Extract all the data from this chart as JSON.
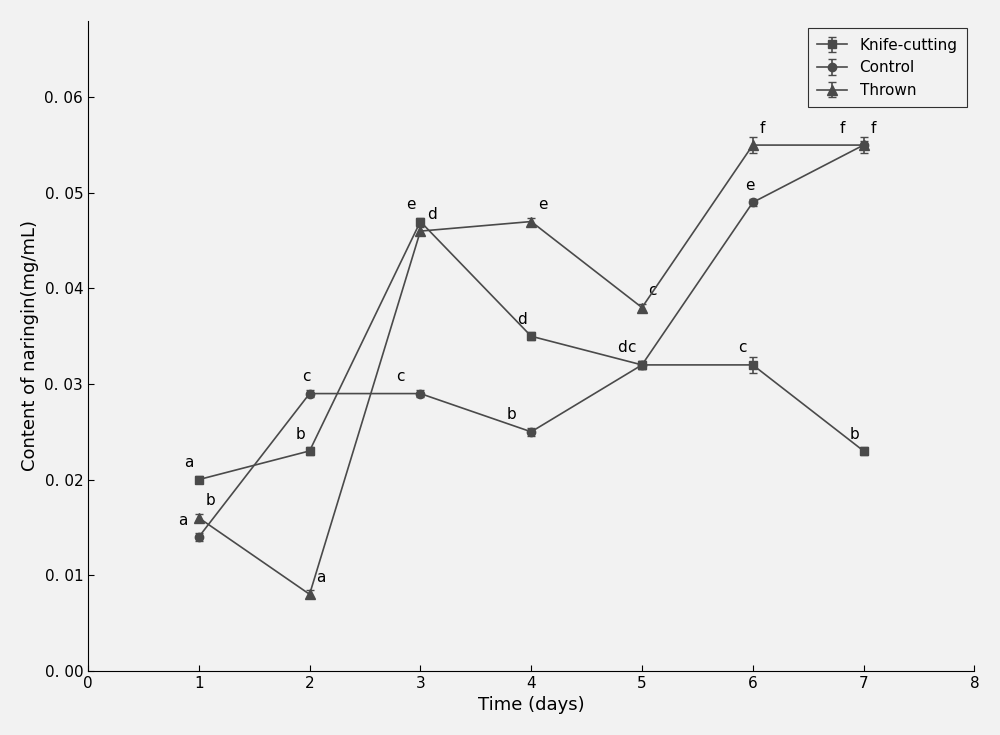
{
  "knife_cutting_x": [
    1,
    2,
    3,
    4,
    5,
    6,
    7
  ],
  "knife_cutting_y": [
    0.02,
    0.023,
    0.047,
    0.035,
    0.032,
    0.032,
    0.023
  ],
  "knife_cutting_yerr": [
    0.0004,
    0.0004,
    0.0004,
    0.0004,
    0.0004,
    0.0008,
    0.0004
  ],
  "knife_cutting_labels": [
    "a",
    "b",
    "e",
    "d",
    "c",
    "c",
    "b"
  ],
  "knife_cutting_lx": [
    -0.13,
    -0.13,
    -0.13,
    -0.13,
    -0.13,
    -0.13,
    -0.13
  ],
  "knife_cutting_ly": [
    0.0013,
    0.0013,
    0.0013,
    0.0013,
    0.0013,
    0.0013,
    0.0013
  ],
  "control_x": [
    1,
    2,
    3,
    4,
    5,
    6,
    7
  ],
  "control_y": [
    0.014,
    0.029,
    0.029,
    0.025,
    0.032,
    0.049,
    0.055
  ],
  "control_yerr": [
    0.0004,
    0.0004,
    0.0004,
    0.0004,
    0.0004,
    0.0004,
    0.0008
  ],
  "control_labels": [
    "a",
    "c",
    "c",
    "b",
    "d",
    "e",
    "f"
  ],
  "control_lx": [
    -0.19,
    -0.07,
    -0.22,
    -0.22,
    -0.22,
    -0.07,
    -0.22
  ],
  "control_ly": [
    0.0013,
    0.0013,
    0.0013,
    0.0013,
    0.0013,
    0.0013,
    0.0013
  ],
  "thrown_x": [
    1,
    2,
    3,
    4,
    5,
    6,
    7
  ],
  "thrown_y": [
    0.016,
    0.008,
    0.046,
    0.047,
    0.038,
    0.055,
    0.055
  ],
  "thrown_yerr": [
    0.0004,
    0.0004,
    0.0004,
    0.0004,
    0.0004,
    0.0008,
    0.0004
  ],
  "thrown_labels": [
    "b",
    "a",
    "d",
    "e",
    "c",
    "f",
    "f"
  ],
  "thrown_lx": [
    0.06,
    0.06,
    0.06,
    0.06,
    0.06,
    0.06,
    0.06
  ],
  "thrown_ly": [
    0.0013,
    0.0013,
    0.0013,
    0.0013,
    0.0013,
    0.0013,
    0.0013
  ],
  "line_color": "#4a4a4a",
  "marker_color": "#4a4a4a",
  "figure_facecolor": "#f2f2f2",
  "axes_facecolor": "#f2f2f2",
  "xlabel": "Time (days)",
  "ylabel": "Content of naringin(mg/mL)",
  "xlim": [
    0,
    8
  ],
  "ylim": [
    0.0,
    0.068
  ],
  "ytick_values": [
    0.0,
    0.01,
    0.02,
    0.03,
    0.04,
    0.05,
    0.06
  ],
  "ytick_labels": [
    "0. 00",
    "0. 01",
    "0. 02",
    "0. 03",
    "0. 04",
    "0. 05",
    "0. 06"
  ],
  "xticks": [
    0,
    1,
    2,
    3,
    4,
    5,
    6,
    7,
    8
  ],
  "legend_labels": [
    "Knife-cutting",
    "Control",
    "Thrown"
  ],
  "label_fontsize": 13,
  "tick_fontsize": 11,
  "annotation_fontsize": 11
}
